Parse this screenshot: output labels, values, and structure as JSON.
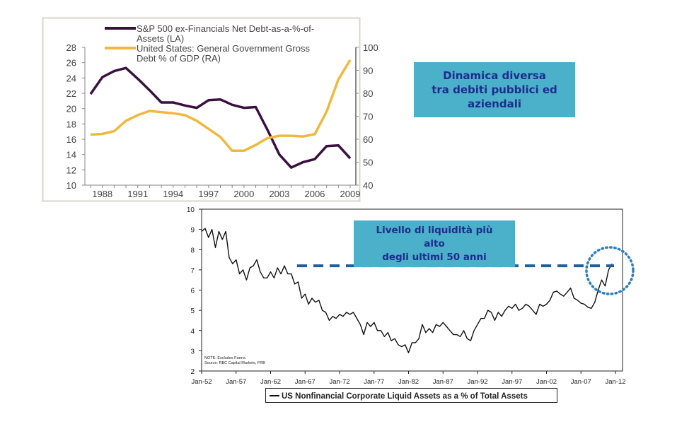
{
  "callouts": {
    "top": [
      "Dinamica diversa",
      "tra debiti pubblici ed",
      "aziendali"
    ],
    "bottom": [
      "Livello di liquidità  più",
      "alto",
      "degli ultimi 50 anni"
    ]
  },
  "chart_data": [
    {
      "type": "line",
      "title": "",
      "x": [
        1987,
        1988,
        1989,
        1990,
        1991,
        1992,
        1993,
        1994,
        1995,
        1996,
        1997,
        1998,
        1999,
        2000,
        2001,
        2002,
        2003,
        2004,
        2005,
        2006,
        2007,
        2008,
        2009
      ],
      "xticks": [
        "1988",
        "1991",
        "1994",
        "1997",
        "2000",
        "2003",
        "2006",
        "2009"
      ],
      "ylim_left": [
        10,
        28
      ],
      "yticks_left": [
        "10",
        "12",
        "14",
        "16",
        "18",
        "20",
        "22",
        "24",
        "26",
        "28"
      ],
      "ylim_right": [
        40,
        100
      ],
      "yticks_right": [
        "40",
        "50",
        "60",
        "70",
        "80",
        "90",
        "100"
      ],
      "legend_position": "top",
      "series": [
        {
          "name": "S&P 500 ex-Financials Net Debt-as-a-%-of-Assets (LA)",
          "legend_lines": [
            "S&P 500 ex-Financials Net Debt-as-a-%-of-",
            "Assets (LA)"
          ],
          "axis": "left",
          "color": "#3a1040",
          "values": [
            21.9,
            24.1,
            24.9,
            25.3,
            23.9,
            22.4,
            20.8,
            20.8,
            20.4,
            20.1,
            21.1,
            21.2,
            20.5,
            20.1,
            20.2,
            17.2,
            14.0,
            12.3,
            13.0,
            13.4,
            15.1,
            15.2,
            13.5
          ]
        },
        {
          "name": "United States: General Government Gross Debt % of GDP (RA)",
          "legend_lines": [
            "United States: General Government Gross",
            "Debt % of GDP (RA)"
          ],
          "axis": "right",
          "color": "#f2b83c",
          "values": [
            62.0,
            62.3,
            63.5,
            68.0,
            70.5,
            72.3,
            71.8,
            71.3,
            70.5,
            68.0,
            64.5,
            61.0,
            55.0,
            55.0,
            57.5,
            60.5,
            61.5,
            61.5,
            61.2,
            62.2,
            72.0,
            86.0,
            94.5
          ]
        }
      ]
    },
    {
      "type": "line",
      "title": "",
      "x_start": 1952,
      "x_step": 0.5,
      "xlim": [
        1952,
        2012
      ],
      "xticks": [
        {
          "year": 1952,
          "label": "Jan-52"
        },
        {
          "year": 1957,
          "label": "Jan-57"
        },
        {
          "year": 1962,
          "label": "Jan-62"
        },
        {
          "year": 1967,
          "label": "Jan-67"
        },
        {
          "year": 1972,
          "label": "Jan-72"
        },
        {
          "year": 1977,
          "label": "Jan-77"
        },
        {
          "year": 1982,
          "label": "Jan-82"
        },
        {
          "year": 1987,
          "label": "Jan-87"
        },
        {
          "year": 1992,
          "label": "Jan-92"
        },
        {
          "year": 1997,
          "label": "Jan-97"
        },
        {
          "year": 2002,
          "label": "Jan-02"
        },
        {
          "year": 2007,
          "label": "Jan-07"
        },
        {
          "year": 2012,
          "label": "Jan-12"
        }
      ],
      "ylim": [
        2,
        10
      ],
      "yticks": [
        "2",
        "3",
        "4",
        "5",
        "6",
        "7",
        "8",
        "9",
        "10"
      ],
      "reference_line": 7.2,
      "note": [
        "NOTE: Excludes Farms.",
        "Source: RBC Capital Markets, FRB"
      ],
      "legend_position": "bottom",
      "series": [
        {
          "name": "US Nonfinancial Corporate Liquid Assets as a % of Total Assets",
          "color": "#111111",
          "values": [
            8.9,
            9.05,
            8.6,
            9.0,
            8.1,
            8.9,
            8.5,
            8.9,
            7.6,
            7.3,
            7.5,
            6.8,
            7.0,
            6.5,
            7.1,
            7.2,
            7.5,
            6.9,
            6.6,
            6.6,
            6.9,
            6.6,
            7.1,
            6.8,
            7.2,
            6.8,
            6.8,
            6.3,
            6.4,
            5.6,
            5.8,
            5.3,
            5.6,
            5.4,
            5.5,
            5.0,
            4.9,
            4.5,
            4.7,
            4.6,
            4.8,
            4.7,
            4.9,
            4.8,
            4.9,
            4.6,
            4.3,
            3.8,
            4.4,
            4.2,
            4.4,
            4.0,
            4.0,
            3.7,
            3.9,
            3.5,
            3.6,
            3.3,
            3.2,
            3.3,
            2.9,
            3.4,
            3.4,
            3.6,
            4.3,
            3.9,
            4.1,
            3.9,
            4.3,
            4.2,
            4.4,
            4.2,
            4.0,
            3.8,
            3.8,
            3.7,
            4.0,
            3.6,
            3.5,
            4.0,
            4.3,
            4.6,
            4.6,
            5.0,
            4.9,
            4.5,
            4.9,
            4.7,
            5.0,
            5.2,
            5.1,
            5.3,
            5.0,
            5.1,
            5.3,
            5.2,
            5.0,
            4.8,
            5.3,
            5.2,
            5.3,
            5.5,
            5.9,
            5.95,
            5.8,
            5.7,
            5.9,
            6.1,
            5.6,
            5.5,
            5.35,
            5.3,
            5.15,
            5.1,
            5.4,
            6.0,
            6.5,
            6.2,
            7.0,
            7.3
          ]
        }
      ]
    }
  ]
}
